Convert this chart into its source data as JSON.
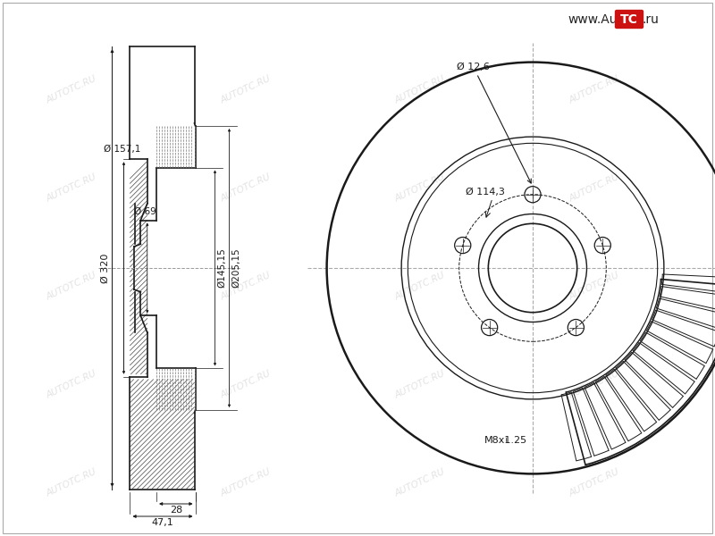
{
  "bg_color": "#ffffff",
  "line_color": "#1a1a1a",
  "dim_color": "#1a1a1a",
  "watermark_color": "#c8c8c8",
  "hatch_color": "#555555",
  "dim_320": "Ø 320",
  "dim_157": "Ø 157,1",
  "dim_69": "Ø 69",
  "dim_145": "Ø145,15",
  "dim_205": "Ø205,15",
  "dim_28": "28",
  "dim_47": "47,1",
  "dim_12": "Ø 12,6",
  "dim_114": "Ø 114,3",
  "dim_m8": "M8x1.25",
  "font_size_dim": 8,
  "font_size_logo": 10
}
